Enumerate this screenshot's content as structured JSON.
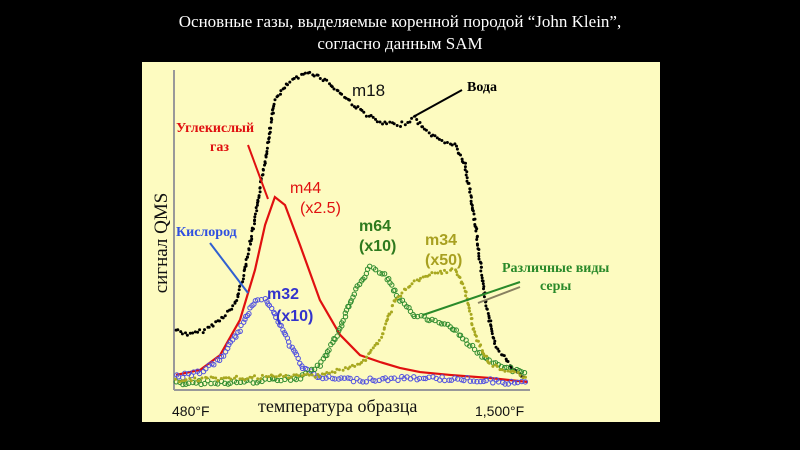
{
  "title": {
    "line1": "Основные газы, выделяемые коренной породой “John Klein”,",
    "line2": "согласно данным SAM"
  },
  "chart_data": {
    "type": "scatter",
    "title": "Основные газы, выделяемые коренной породой “John Klein”, согласно данным SAM",
    "xlabel": "температура образца",
    "ylabel": "сигнал QMS",
    "x_tick_labels": [
      "480°F",
      "1,500°F"
    ],
    "xlim": [
      480,
      1500
    ],
    "ylim": [
      0,
      100
    ],
    "y_units": "relative",
    "grid": false,
    "series": [
      {
        "name": "m18",
        "color": "#000000",
        "marker": "dot",
        "x": [
          486,
          526,
          569,
          612,
          655,
          683,
          712,
          741,
          769,
          812,
          870,
          913,
          956,
          1013,
          1070,
          1127,
          1170,
          1199,
          1242,
          1285,
          1314,
          1342,
          1371,
          1400,
          1443,
          1486
        ],
        "y": [
          18.8,
          17.2,
          18.8,
          21.9,
          26.6,
          37.5,
          53.1,
          71.9,
          90.6,
          96.3,
          99.4,
          96.9,
          92.8,
          87.5,
          83.4,
          82.8,
          85.0,
          81.3,
          78.1,
          76.6,
          70.3,
          53.1,
          28.1,
          14.1,
          7.8,
          3.8
        ]
      },
      {
        "name": "m44 (x2.5)",
        "color": "#e01010",
        "marker": "line",
        "x": [
          486,
          555,
          612,
          669,
          712,
          741,
          769,
          798,
          841,
          898,
          956,
          1013,
          1070,
          1127,
          1185,
          1271,
          1385,
          1494
        ],
        "y": [
          4.7,
          6.3,
          10.9,
          21.9,
          37.5,
          51.6,
          60.3,
          57.8,
          45.3,
          28.1,
          17.2,
          10.9,
          8.75,
          6.9,
          5.6,
          4.7,
          3.75,
          2.5
        ]
      },
      {
        "name": "m32 (x10)",
        "color": "#5050e0",
        "marker": "circle",
        "x": [
          486,
          555,
          612,
          669,
          712,
          741,
          769,
          812,
          855,
          898,
          1013,
          1185,
          1357,
          1494
        ],
        "y": [
          4.1,
          5.6,
          9.4,
          18.8,
          28.1,
          29.1,
          23.4,
          14.1,
          6.3,
          3.8,
          3.1,
          3.8,
          3.1,
          1.9
        ]
      },
      {
        "name": "m64 (x10)",
        "color": "#2e8b2e",
        "marker": "circle",
        "x": [
          486,
          698,
          841,
          898,
          956,
          999,
          1042,
          1085,
          1127,
          1170,
          1213,
          1271,
          1328,
          1385,
          1494
        ],
        "y": [
          2.2,
          2.5,
          3.8,
          7.8,
          18.8,
          31.3,
          38.1,
          35.9,
          28.1,
          23.4,
          21.9,
          20.3,
          14.1,
          8.75,
          4.7
        ]
      },
      {
        "name": "m34 (x50)",
        "color": "#a8a820",
        "marker": "dot",
        "x": [
          486,
          698,
          898,
          1013,
          1070,
          1113,
          1156,
          1213,
          1285,
          1314,
          1342,
          1385,
          1494
        ],
        "y": [
          3.1,
          3.8,
          4.7,
          7.8,
          15.6,
          28.1,
          32.8,
          35.9,
          37.5,
          31.3,
          17.2,
          7.8,
          3.8
        ]
      }
    ],
    "annotations": {
      "water": "Вода",
      "co2_line1": "Углекислый",
      "co2_line2": "газ",
      "oxygen": "Кислород",
      "sulfur_line1": "Различные виды",
      "sulfur_line2": "серы",
      "m18": "m18",
      "m44": "m44",
      "m44_scale": "(x2.5)",
      "m32": "m32",
      "m32_scale": "(x10)",
      "m64": "m64",
      "m64_scale": "(x10)",
      "m34": "m34",
      "m34_scale": "(x50)"
    }
  }
}
